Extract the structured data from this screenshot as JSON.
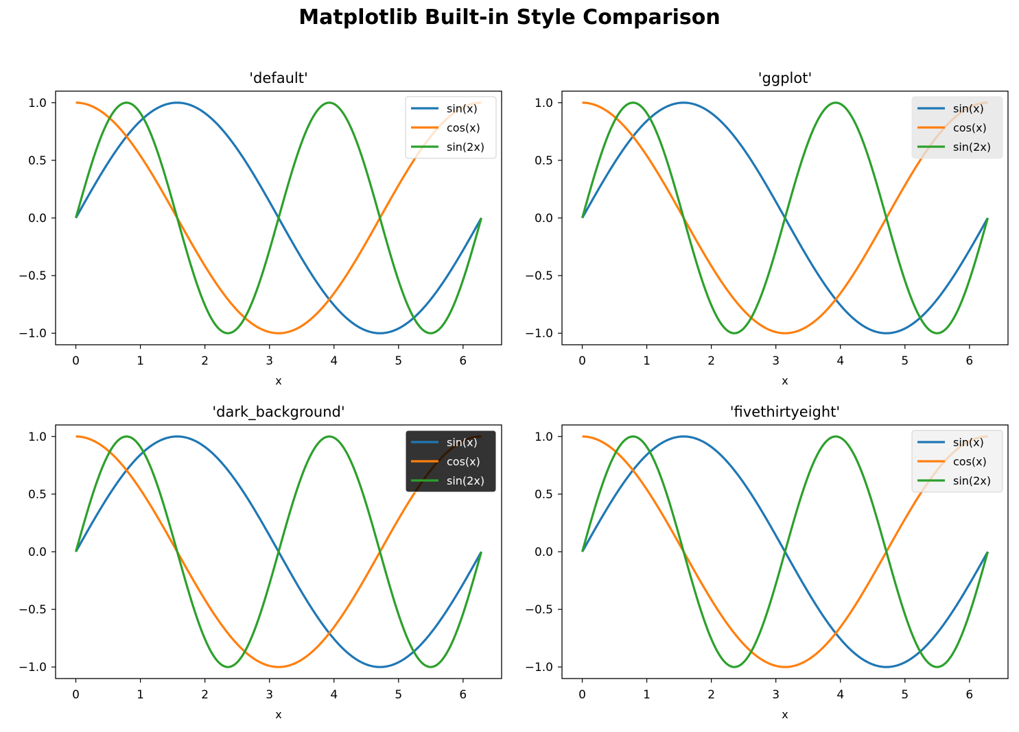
{
  "figure": {
    "title": "Matplotlib Built-in Style Comparison"
  },
  "colors": {
    "sin_x": "#1f77b4",
    "cos_x": "#ff7f0e",
    "sin_2x": "#2ca02c"
  },
  "chart_data": [
    {
      "type": "line",
      "title": "'default'",
      "xlabel": "x",
      "ylabel": "",
      "xlim": [
        -0.314,
        6.597
      ],
      "ylim": [
        -1.1,
        1.1
      ],
      "xticks": [
        0,
        1,
        2,
        3,
        4,
        5,
        6
      ],
      "xtick_labels": [
        "0",
        "1",
        "2",
        "3",
        "4",
        "5",
        "6"
      ],
      "yticks": [
        -1.0,
        -0.5,
        0.0,
        0.5,
        1.0
      ],
      "ytick_labels": [
        "−1.0",
        "−0.5",
        "0.0",
        "0.5",
        "1.0"
      ],
      "grid": false,
      "legend_placement": "upper-right",
      "legend_style": "light",
      "x_domain": [
        0,
        6.2832
      ],
      "series": [
        {
          "name": "sin(x)",
          "function": "sin(x)",
          "color": "#1f77b4"
        },
        {
          "name": "cos(x)",
          "function": "cos(x)",
          "color": "#ff7f0e"
        },
        {
          "name": "sin(2x)",
          "function": "sin(2x)",
          "color": "#2ca02c"
        }
      ]
    },
    {
      "type": "line",
      "title": "'ggplot'",
      "xlabel": "x",
      "ylabel": "",
      "xlim": [
        -0.314,
        6.597
      ],
      "ylim": [
        -1.1,
        1.1
      ],
      "xticks": [
        0,
        1,
        2,
        3,
        4,
        5,
        6
      ],
      "xtick_labels": [
        "0",
        "1",
        "2",
        "3",
        "4",
        "5",
        "6"
      ],
      "yticks": [
        -1.0,
        -0.5,
        0.0,
        0.5,
        1.0
      ],
      "ytick_labels": [
        "−1.0",
        "−0.5",
        "0.0",
        "0.5",
        "1.0"
      ],
      "grid": false,
      "legend_placement": "upper-right",
      "legend_style": "gray",
      "x_domain": [
        0,
        6.2832
      ],
      "series": [
        {
          "name": "sin(x)",
          "function": "sin(x)",
          "color": "#1f77b4"
        },
        {
          "name": "cos(x)",
          "function": "cos(x)",
          "color": "#ff7f0e"
        },
        {
          "name": "sin(2x)",
          "function": "sin(2x)",
          "color": "#2ca02c"
        }
      ]
    },
    {
      "type": "line",
      "title": "'dark_background'",
      "xlabel": "x",
      "ylabel": "",
      "xlim": [
        -0.314,
        6.597
      ],
      "ylim": [
        -1.1,
        1.1
      ],
      "xticks": [
        0,
        1,
        2,
        3,
        4,
        5,
        6
      ],
      "xtick_labels": [
        "0",
        "1",
        "2",
        "3",
        "4",
        "5",
        "6"
      ],
      "yticks": [
        -1.0,
        -0.5,
        0.0,
        0.5,
        1.0
      ],
      "ytick_labels": [
        "−1.0",
        "−0.5",
        "0.0",
        "0.5",
        "1.0"
      ],
      "grid": false,
      "legend_placement": "upper-right",
      "legend_style": "dark",
      "x_domain": [
        0,
        6.2832
      ],
      "series": [
        {
          "name": "sin(x)",
          "function": "sin(x)",
          "color": "#1f77b4"
        },
        {
          "name": "cos(x)",
          "function": "cos(x)",
          "color": "#ff7f0e"
        },
        {
          "name": "sin(2x)",
          "function": "sin(2x)",
          "color": "#2ca02c"
        }
      ]
    },
    {
      "type": "line",
      "title": "'fivethirtyeight'",
      "xlabel": "x",
      "ylabel": "",
      "xlim": [
        -0.314,
        6.597
      ],
      "ylim": [
        -1.1,
        1.1
      ],
      "xticks": [
        0,
        1,
        2,
        3,
        4,
        5,
        6
      ],
      "xtick_labels": [
        "0",
        "1",
        "2",
        "3",
        "4",
        "5",
        "6"
      ],
      "yticks": [
        -1.0,
        -0.5,
        0.0,
        0.5,
        1.0
      ],
      "ytick_labels": [
        "−1.0",
        "−0.5",
        "0.0",
        "0.5",
        "1.0"
      ],
      "grid": false,
      "legend_placement": "upper-right",
      "legend_style": "light-gray",
      "x_domain": [
        0,
        6.2832
      ],
      "series": [
        {
          "name": "sin(x)",
          "function": "sin(x)",
          "color": "#1f77b4"
        },
        {
          "name": "cos(x)",
          "function": "cos(x)",
          "color": "#ff7f0e"
        },
        {
          "name": "sin(2x)",
          "function": "sin(2x)",
          "color": "#2ca02c"
        }
      ]
    }
  ]
}
